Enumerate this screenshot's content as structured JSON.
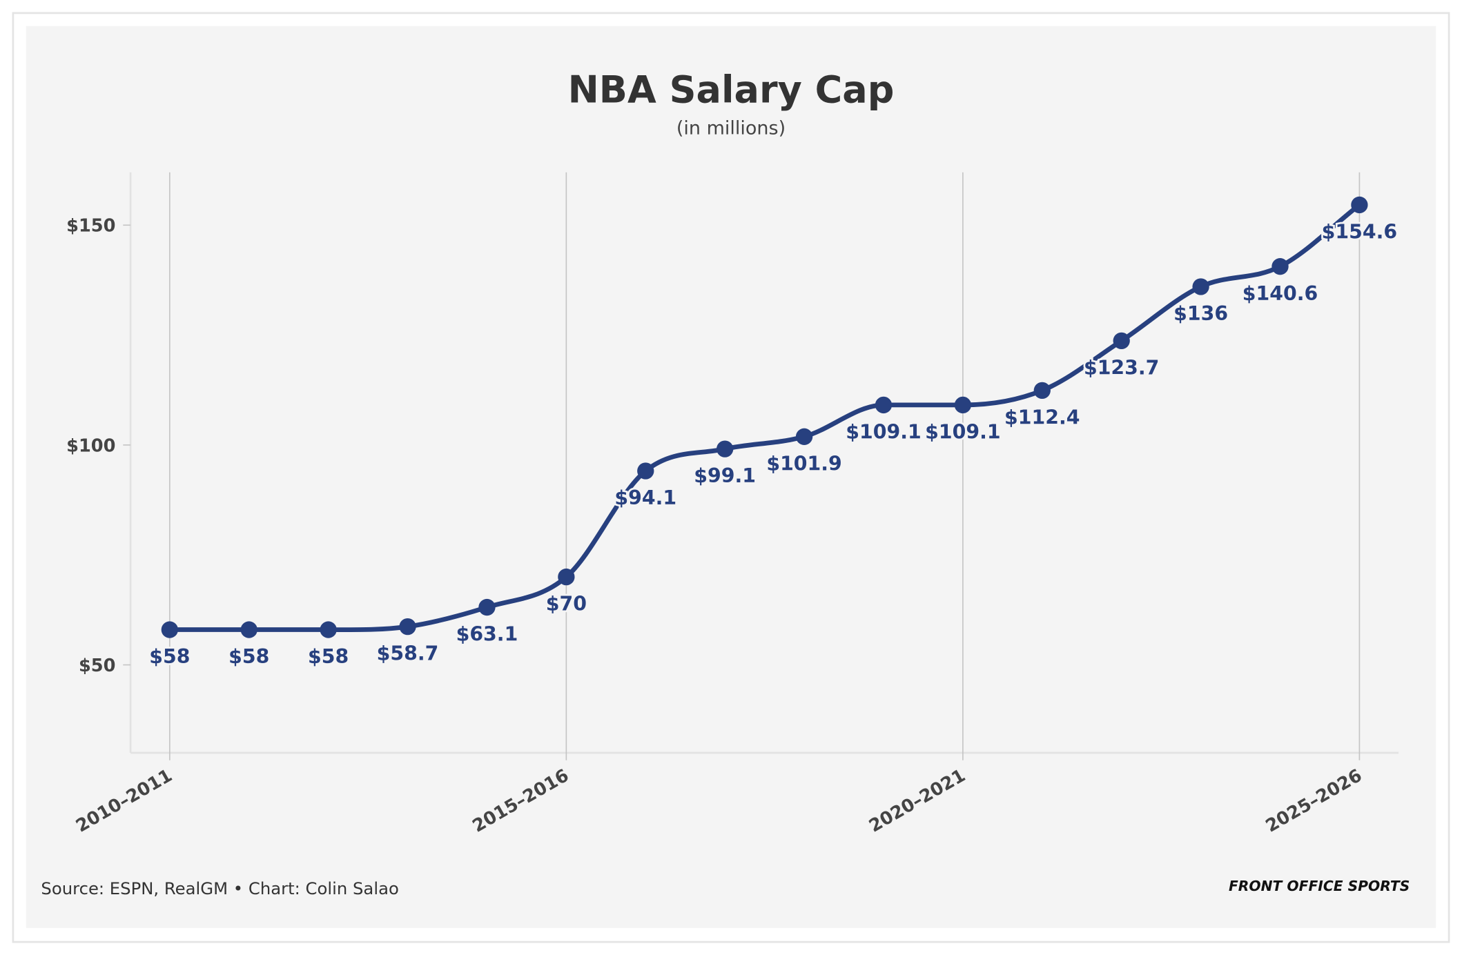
{
  "chart_data": {
    "type": "line",
    "title": "NBA Salary Cap",
    "subtitle": "(in millions)",
    "categories": [
      "2010–2011",
      null,
      null,
      null,
      null,
      "2015–2016",
      null,
      null,
      null,
      null,
      "2020–2021",
      null,
      null,
      null,
      null,
      "2025–2026"
    ],
    "series": [
      {
        "name": "Salary cap",
        "color": "#27407f",
        "values": [
          58,
          58,
          58,
          58.7,
          63.1,
          70,
          94.1,
          99.1,
          101.9,
          109.1,
          109.1,
          112.4,
          123.7,
          136,
          140.6,
          154.6
        ],
        "value_labels": [
          "$58",
          "$58",
          "$58",
          "$58.7",
          "$63.1",
          "$70",
          "$94.1",
          "$99.1",
          "$101.9",
          "$109.1",
          "$109.1",
          "$112.4",
          "$123.7",
          "$136",
          "$140.6",
          "$154.6"
        ]
      }
    ],
    "ylim": [
      30,
      162
    ],
    "yticks": [
      {
        "value": 50,
        "label": "$50"
      },
      {
        "value": 100,
        "label": "$100"
      },
      {
        "value": 150,
        "label": "$150"
      }
    ],
    "source": "Source: ESPN, RealGM • Chart: Colin Salao",
    "brand": "FRONT OFFICE SPORTS"
  }
}
